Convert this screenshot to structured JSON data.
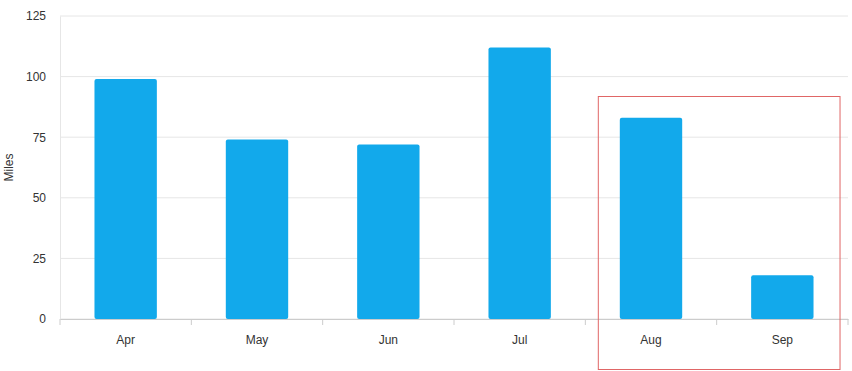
{
  "chart_data": {
    "type": "bar",
    "y_label": "Miles",
    "categories": [
      "Apr",
      "May",
      "Jun",
      "Jul",
      "Aug",
      "Sep"
    ],
    "values": [
      99,
      74,
      72,
      112,
      83,
      18
    ],
    "color": "#12a9eb",
    "ylim": [
      0,
      125
    ],
    "yticks": [
      0,
      25,
      50,
      75,
      100,
      125
    ],
    "grid": true
  }
}
